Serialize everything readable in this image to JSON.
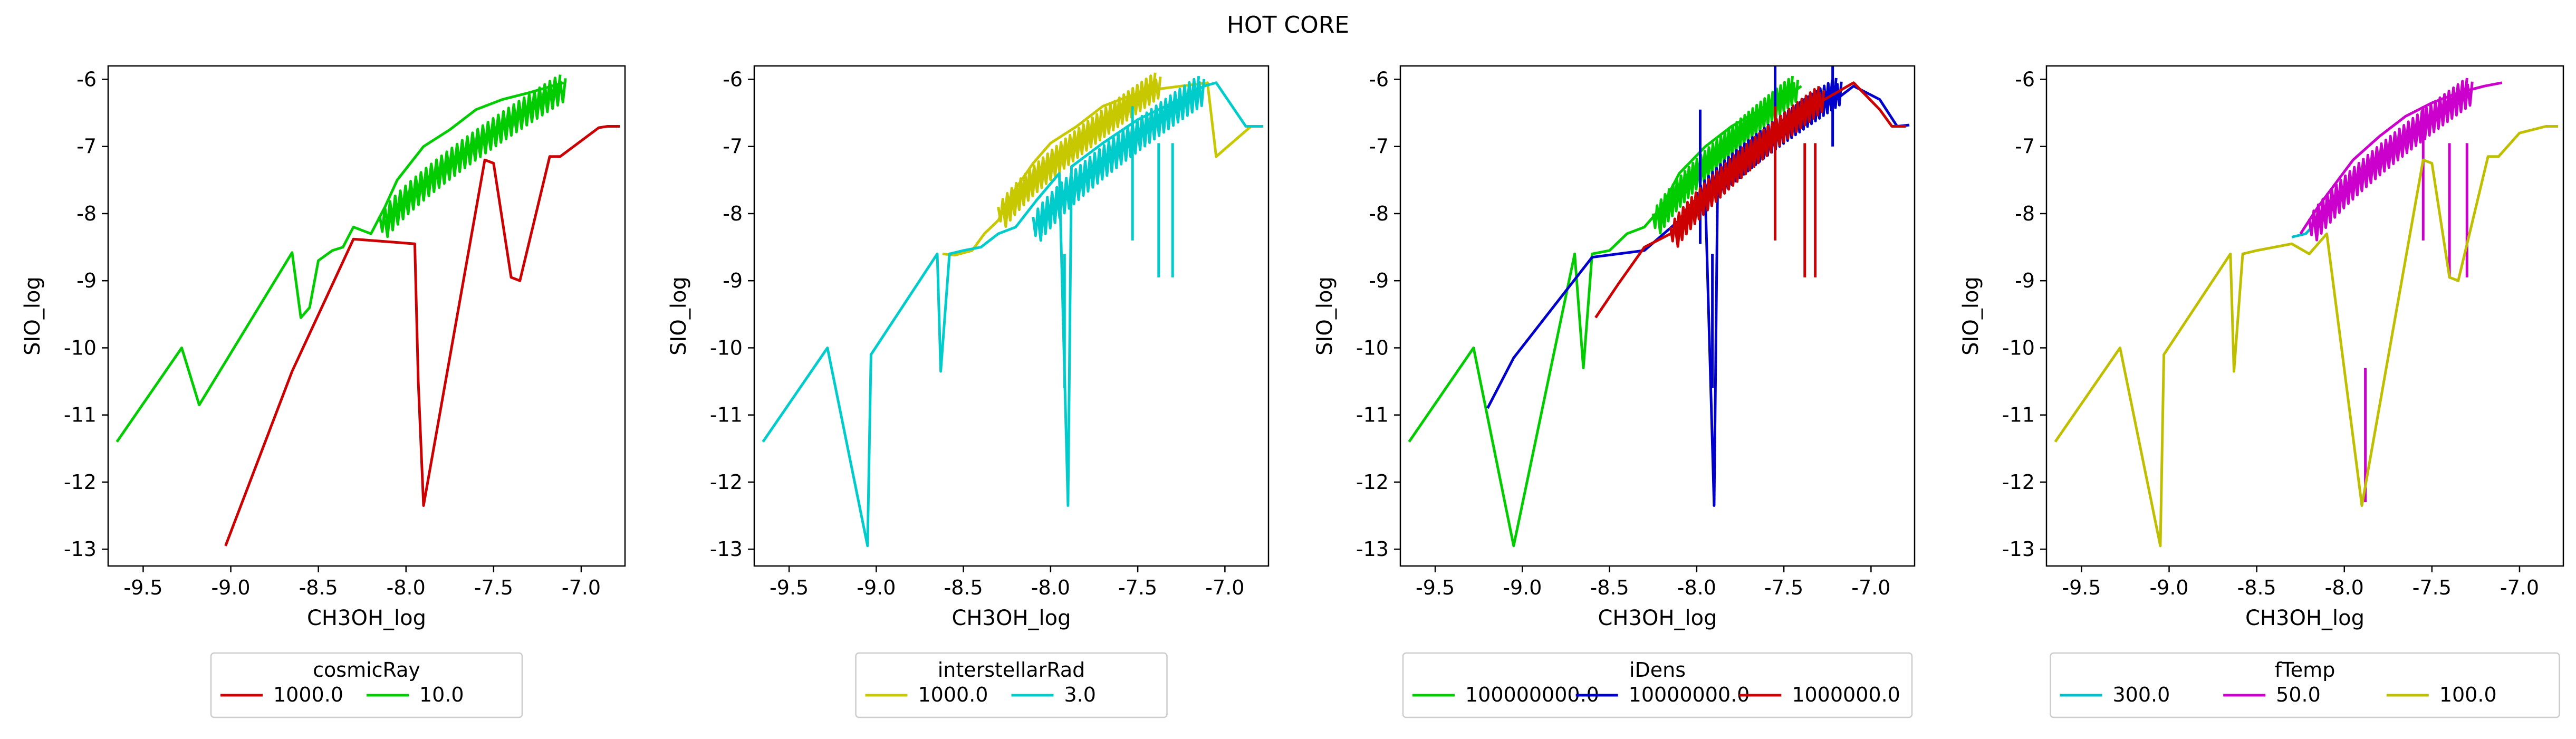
{
  "figure": {
    "title": "HOT CORE"
  },
  "chart_data": [
    {
      "type": "line",
      "xlabel": "CH3OH_log",
      "ylabel": "SIO_log",
      "xlim": [
        -9.7,
        -6.75
      ],
      "ylim": [
        -13.25,
        -5.8
      ],
      "xticks": [
        "-9.5",
        "-9.0",
        "-8.5",
        "-8.0",
        "-7.5",
        "-7.0"
      ],
      "yticks": [
        "-6",
        "-7",
        "-8",
        "-9",
        "-10",
        "-11",
        "-12",
        "-13"
      ],
      "legend": {
        "title": "cosmicRay",
        "placement": "below",
        "entries": [
          "1000.0",
          "10.0"
        ]
      },
      "series": [
        {
          "name": "1000.0",
          "color": "#cc0000",
          "points": [
            [
              -9.03,
              -12.95
            ],
            [
              -8.65,
              -10.35
            ],
            [
              -8.3,
              -8.38
            ],
            [
              -7.95,
              -8.45
            ],
            [
              -7.93,
              -10.5
            ],
            [
              -7.9,
              -12.35
            ],
            [
              -7.55,
              -7.2
            ],
            [
              -7.5,
              -7.25
            ],
            [
              -7.4,
              -8.95
            ],
            [
              -7.35,
              -9.0
            ],
            [
              -7.18,
              -7.15
            ],
            [
              -7.12,
              -7.15
            ],
            [
              -6.9,
              -6.72
            ],
            [
              -6.85,
              -6.7
            ],
            [
              -6.78,
              -6.7
            ]
          ]
        },
        {
          "name": "10.0",
          "color": "#00cc00",
          "points": [
            [
              -9.65,
              -11.4
            ],
            [
              -9.28,
              -10.0
            ],
            [
              -9.18,
              -10.85
            ],
            [
              -8.65,
              -8.58
            ],
            [
              -8.6,
              -9.55
            ],
            [
              -8.55,
              -9.4
            ],
            [
              -8.5,
              -8.7
            ],
            [
              -8.42,
              -8.55
            ],
            [
              -8.36,
              -8.5
            ],
            [
              -8.3,
              -8.2
            ],
            [
              -8.2,
              -8.3
            ],
            [
              -8.12,
              -7.9
            ],
            [
              -8.05,
              -7.5
            ],
            [
              -7.9,
              -7.0
            ],
            [
              -7.75,
              -6.75
            ],
            [
              -7.6,
              -6.45
            ],
            [
              -7.45,
              -6.3
            ],
            [
              -7.3,
              -6.2
            ],
            [
              -7.1,
              -6.05
            ]
          ],
          "band": {
            "from": -8.15,
            "to": -7.12,
            "yBottom": -8.25,
            "yTop": -6.15,
            "width": 0.22
          }
        }
      ]
    },
    {
      "type": "line",
      "xlabel": "CH3OH_log",
      "ylabel": "SIO_log",
      "xlim": [
        -9.7,
        -6.75
      ],
      "ylim": [
        -13.25,
        -5.8
      ],
      "xticks": [
        "-9.5",
        "-9.0",
        "-8.5",
        "-8.0",
        "-7.5",
        "-7.0"
      ],
      "yticks": [
        "-6",
        "-7",
        "-8",
        "-9",
        "-10",
        "-11",
        "-12",
        "-13"
      ],
      "legend": {
        "title": "interstellarRad",
        "placement": "below",
        "entries": [
          "1000.0",
          "3.0"
        ]
      },
      "series": [
        {
          "name": "1000.0",
          "color": "#c8c800",
          "points": [
            [
              -8.62,
              -8.6
            ],
            [
              -8.55,
              -8.62
            ],
            [
              -8.45,
              -8.55
            ],
            [
              -8.38,
              -8.3
            ],
            [
              -8.3,
              -8.1
            ],
            [
              -8.22,
              -7.7
            ],
            [
              -8.1,
              -7.25
            ],
            [
              -8.0,
              -6.95
            ],
            [
              -7.85,
              -6.7
            ],
            [
              -7.7,
              -6.4
            ],
            [
              -7.55,
              -6.25
            ],
            [
              -7.4,
              -6.15
            ],
            [
              -7.25,
              -6.1
            ],
            [
              -7.1,
              -6.05
            ],
            [
              -7.05,
              -7.15
            ],
            [
              -6.85,
              -6.7
            ],
            [
              -6.78,
              -6.7
            ]
          ],
          "band": {
            "from": -8.3,
            "to": -7.4,
            "yBottom": -8.1,
            "yTop": -6.1,
            "width": 0.2
          }
        },
        {
          "name": "3.0",
          "color": "#00cccc",
          "points": [
            [
              -9.65,
              -11.4
            ],
            [
              -9.28,
              -10.0
            ],
            [
              -9.05,
              -12.95
            ],
            [
              -9.03,
              -10.1
            ],
            [
              -8.65,
              -8.6
            ],
            [
              -8.63,
              -10.35
            ],
            [
              -8.58,
              -8.6
            ],
            [
              -8.5,
              -8.55
            ],
            [
              -8.4,
              -8.5
            ],
            [
              -8.3,
              -8.3
            ],
            [
              -8.2,
              -8.2
            ],
            [
              -8.08,
              -7.8
            ],
            [
              -7.95,
              -7.4
            ],
            [
              -7.9,
              -12.35
            ],
            [
              -7.88,
              -7.3
            ],
            [
              -7.7,
              -6.95
            ],
            [
              -7.5,
              -6.6
            ],
            [
              -7.3,
              -6.35
            ],
            [
              -7.12,
              -6.1
            ],
            [
              -7.05,
              -6.05
            ],
            [
              -6.88,
              -6.7
            ],
            [
              -6.78,
              -6.7
            ]
          ],
          "spikes": [
            [
              -7.92,
              -10.6
            ],
            [
              -7.53,
              -8.4
            ],
            [
              -7.38,
              -8.95
            ],
            [
              -7.3,
              -8.95
            ]
          ],
          "band": {
            "from": -8.1,
            "to": -7.15,
            "yBottom": -8.3,
            "yTop": -6.2,
            "width": 0.25
          }
        }
      ]
    },
    {
      "type": "line",
      "xlabel": "CH3OH_log",
      "ylabel": "SIO_log",
      "xlim": [
        -9.7,
        -6.75
      ],
      "ylim": [
        -13.25,
        -5.8
      ],
      "xticks": [
        "-9.5",
        "-9.0",
        "-8.5",
        "-8.0",
        "-7.5",
        "-7.0"
      ],
      "yticks": [
        "-6",
        "-7",
        "-8",
        "-9",
        "-10",
        "-11",
        "-12",
        "-13"
      ],
      "legend": {
        "title": "iDens",
        "placement": "below",
        "entries": [
          "100000000.0",
          "10000000.0",
          "1000000.0"
        ]
      },
      "series": [
        {
          "name": "100000000.0",
          "color": "#00cc00",
          "points": [
            [
              -9.65,
              -11.4
            ],
            [
              -9.28,
              -10.0
            ],
            [
              -9.05,
              -12.95
            ],
            [
              -8.7,
              -8.6
            ],
            [
              -8.65,
              -10.3
            ],
            [
              -8.6,
              -8.6
            ],
            [
              -8.5,
              -8.55
            ],
            [
              -8.4,
              -8.3
            ],
            [
              -8.3,
              -8.2
            ],
            [
              -8.2,
              -7.9
            ],
            [
              -8.1,
              -7.4
            ],
            [
              -7.95,
              -7.0
            ],
            [
              -7.8,
              -6.7
            ],
            [
              -7.6,
              -6.4
            ],
            [
              -7.45,
              -6.2
            ],
            [
              -7.4,
              -6.1
            ]
          ],
          "band": {
            "from": -8.25,
            "to": -7.45,
            "yBottom": -8.2,
            "yTop": -6.15,
            "width": 0.2
          }
        },
        {
          "name": "10000000.0",
          "color": "#0000cc",
          "points": [
            [
              -9.2,
              -10.9
            ],
            [
              -9.05,
              -10.15
            ],
            [
              -8.6,
              -8.65
            ],
            [
              -8.3,
              -8.55
            ],
            [
              -8.1,
              -8.1
            ],
            [
              -7.95,
              -7.8
            ],
            [
              -7.9,
              -12.35
            ],
            [
              -7.88,
              -7.6
            ],
            [
              -7.7,
              -7.1
            ],
            [
              -7.5,
              -6.8
            ],
            [
              -7.35,
              -6.55
            ],
            [
              -7.2,
              -6.3
            ],
            [
              -7.1,
              -6.1
            ],
            [
              -6.95,
              -6.3
            ],
            [
              -6.85,
              -6.7
            ],
            [
              -6.78,
              -6.68
            ]
          ],
          "spikes": [
            [
              -7.91,
              -10.6
            ],
            [
              -7.98,
              -8.45
            ],
            [
              -7.55,
              -7.0
            ],
            [
              -7.22,
              -7.0
            ]
          ],
          "band": {
            "from": -8.0,
            "to": -7.2,
            "yBottom": -7.9,
            "yTop": -6.2,
            "width": 0.22
          }
        },
        {
          "name": "1000000.0",
          "color": "#cc0000",
          "points": [
            [
              -8.58,
              -9.55
            ],
            [
              -8.45,
              -9.05
            ],
            [
              -8.3,
              -8.5
            ],
            [
              -8.15,
              -8.3
            ],
            [
              -8.05,
              -7.9
            ],
            [
              -7.9,
              -7.55
            ],
            [
              -7.75,
              -7.2
            ],
            [
              -7.6,
              -6.95
            ],
            [
              -7.45,
              -6.65
            ],
            [
              -7.3,
              -6.35
            ],
            [
              -7.1,
              -6.05
            ],
            [
              -6.95,
              -6.45
            ],
            [
              -6.88,
              -6.7
            ],
            [
              -6.8,
              -6.7
            ]
          ],
          "spikes": [
            [
              -7.55,
              -8.4
            ],
            [
              -7.38,
              -8.95
            ],
            [
              -7.32,
              -8.95
            ]
          ],
          "band": {
            "from": -8.15,
            "to": -7.3,
            "yBottom": -8.4,
            "yTop": -6.3,
            "width": 0.2
          }
        }
      ]
    },
    {
      "type": "line",
      "xlabel": "CH3OH_log",
      "ylabel": "SIO_log",
      "xlim": [
        -9.7,
        -6.75
      ],
      "ylim": [
        -13.25,
        -5.8
      ],
      "xticks": [
        "-9.5",
        "-9.0",
        "-8.5",
        "-8.0",
        "-7.5",
        "-7.0"
      ],
      "yticks": [
        "-6",
        "-7",
        "-8",
        "-9",
        "-10",
        "-11",
        "-12",
        "-13"
      ],
      "legend": {
        "title": "fTemp",
        "placement": "below",
        "entries": [
          "300.0",
          "50.0",
          "100.0"
        ]
      },
      "series": [
        {
          "name": "300.0",
          "color": "#00bfcc",
          "points": [
            [
              -8.3,
              -8.35
            ],
            [
              -8.22,
              -8.3
            ],
            [
              -8.15,
              -8.1
            ],
            [
              -8.05,
              -7.9
            ]
          ]
        },
        {
          "name": "50.0",
          "color": "#cc00cc",
          "points": [
            [
              -8.25,
              -8.3
            ],
            [
              -8.15,
              -7.9
            ],
            [
              -8.05,
              -7.55
            ],
            [
              -7.95,
              -7.2
            ],
            [
              -7.8,
              -6.85
            ],
            [
              -7.65,
              -6.55
            ],
            [
              -7.5,
              -6.35
            ],
            [
              -7.35,
              -6.2
            ],
            [
              -7.2,
              -6.1
            ],
            [
              -7.1,
              -6.05
            ]
          ],
          "spikes": [
            [
              -7.88,
              -12.3
            ],
            [
              -7.55,
              -8.4
            ],
            [
              -7.4,
              -8.95
            ],
            [
              -7.3,
              -8.95
            ]
          ],
          "band": {
            "from": -8.2,
            "to": -7.3,
            "yBottom": -8.3,
            "yTop": -6.2,
            "width": 0.22
          }
        },
        {
          "name": "100.0",
          "color": "#bfbf00",
          "points": [
            [
              -9.65,
              -11.4
            ],
            [
              -9.28,
              -10.0
            ],
            [
              -9.05,
              -12.95
            ],
            [
              -9.03,
              -10.1
            ],
            [
              -8.65,
              -8.6
            ],
            [
              -8.63,
              -10.35
            ],
            [
              -8.58,
              -8.6
            ],
            [
              -8.5,
              -8.55
            ],
            [
              -8.4,
              -8.5
            ],
            [
              -8.3,
              -8.45
            ],
            [
              -8.2,
              -8.6
            ],
            [
              -8.1,
              -8.3
            ],
            [
              -7.9,
              -12.35
            ],
            [
              -7.55,
              -7.2
            ],
            [
              -7.5,
              -7.25
            ],
            [
              -7.4,
              -8.95
            ],
            [
              -7.35,
              -9.0
            ],
            [
              -7.18,
              -7.15
            ],
            [
              -7.12,
              -7.15
            ],
            [
              -7.0,
              -6.8
            ],
            [
              -6.85,
              -6.7
            ],
            [
              -6.78,
              -6.7
            ]
          ]
        }
      ]
    }
  ]
}
